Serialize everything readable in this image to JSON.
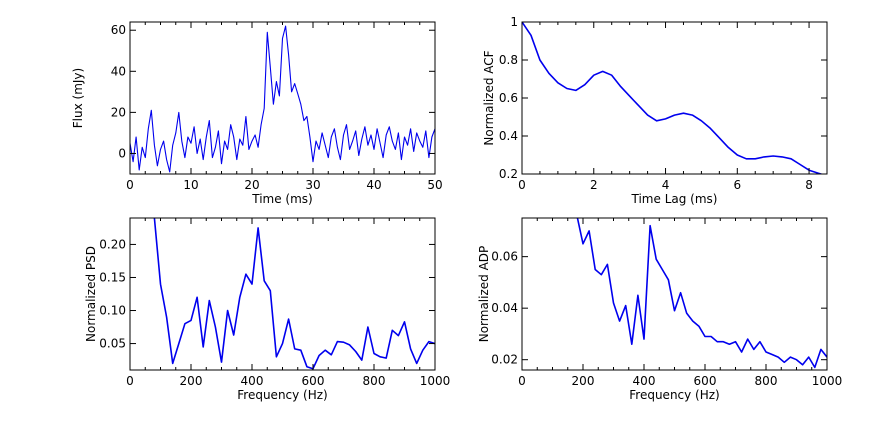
{
  "chart_data": [
    {
      "type": "line",
      "title": "",
      "xlabel": "Time (ms)",
      "ylabel": "Flux (mJy)",
      "xlim": [
        0,
        50
      ],
      "ylim": [
        -10,
        64
      ],
      "xticks": [
        0,
        10,
        20,
        30,
        40,
        50
      ],
      "yticks": [
        0,
        20,
        40,
        60
      ],
      "color": "#0000ee",
      "series": [
        {
          "name": "flux",
          "x": [
            0,
            0.5,
            1,
            1.5,
            2,
            2.5,
            3,
            3.5,
            4,
            4.5,
            5,
            5.5,
            6,
            6.5,
            7,
            7.5,
            8,
            8.5,
            9,
            9.5,
            10,
            10.5,
            11,
            11.5,
            12,
            12.5,
            13,
            13.5,
            14,
            14.5,
            15,
            15.5,
            16,
            16.5,
            17,
            17.5,
            18,
            18.5,
            19,
            19.5,
            20,
            20.5,
            21,
            21.5,
            22,
            22.5,
            23,
            23.5,
            24,
            24.5,
            25,
            25.5,
            26,
            26.5,
            27,
            27.5,
            28,
            28.5,
            29,
            29.5,
            30,
            30.5,
            31,
            31.5,
            32,
            32.5,
            33,
            33.5,
            34,
            34.5,
            35,
            35.5,
            36,
            36.5,
            37,
            37.5,
            38,
            38.5,
            39,
            39.5,
            40,
            40.5,
            41,
            41.5,
            42,
            42.5,
            43,
            43.5,
            44,
            44.5,
            45,
            45.5,
            46,
            46.5,
            47,
            47.5,
            48,
            48.5,
            49,
            49.5,
            50
          ],
          "values": [
            5,
            -4,
            8,
            -8,
            3,
            -2,
            12,
            21,
            4,
            -6,
            2,
            6,
            -3,
            -9,
            4,
            10,
            20,
            6,
            -2,
            8,
            5,
            13,
            0,
            7,
            -3,
            8,
            16,
            -2,
            3,
            11,
            -5,
            6,
            2,
            14,
            8,
            -3,
            7,
            4,
            18,
            2,
            6,
            9,
            3,
            14,
            22,
            59,
            42,
            24,
            35,
            28,
            56,
            62,
            48,
            30,
            34,
            29,
            24,
            16,
            18,
            8,
            -4,
            6,
            2,
            10,
            4,
            -2,
            8,
            12,
            3,
            -3,
            9,
            14,
            2,
            6,
            11,
            -1,
            7,
            13,
            4,
            9,
            2,
            12,
            5,
            -2,
            9,
            13,
            6,
            2,
            10,
            -3,
            8,
            4,
            12,
            1,
            10,
            6,
            3,
            11,
            -2,
            8,
            12
          ]
        }
      ]
    },
    {
      "type": "line",
      "title": "",
      "xlabel": "Time Lag (ms)",
      "ylabel": "Normalized ACF",
      "xlim": [
        0,
        8.5
      ],
      "ylim": [
        0.2,
        1.0
      ],
      "xticks": [
        0,
        2,
        4,
        6,
        8
      ],
      "yticks": [
        0.2,
        0.4,
        0.6,
        0.8,
        1.0
      ],
      "color": "#0000ee",
      "series": [
        {
          "name": "acf",
          "x": [
            0,
            0.25,
            0.5,
            0.75,
            1.0,
            1.25,
            1.5,
            1.75,
            2.0,
            2.25,
            2.5,
            2.75,
            3.0,
            3.25,
            3.5,
            3.75,
            4.0,
            4.25,
            4.5,
            4.75,
            5.0,
            5.25,
            5.5,
            5.75,
            6.0,
            6.25,
            6.5,
            6.75,
            7.0,
            7.25,
            7.5,
            7.75,
            8.0,
            8.25,
            8.5
          ],
          "values": [
            1.0,
            0.93,
            0.8,
            0.73,
            0.68,
            0.65,
            0.64,
            0.67,
            0.72,
            0.74,
            0.72,
            0.66,
            0.61,
            0.56,
            0.51,
            0.48,
            0.49,
            0.51,
            0.52,
            0.51,
            0.48,
            0.44,
            0.39,
            0.34,
            0.3,
            0.28,
            0.28,
            0.29,
            0.295,
            0.29,
            0.28,
            0.25,
            0.22,
            0.205,
            0.19
          ]
        }
      ]
    },
    {
      "type": "line",
      "title": "",
      "xlabel": "Frequency (Hz)",
      "ylabel": "Normalized PSD",
      "xlim": [
        0,
        1000
      ],
      "ylim": [
        0.01,
        0.24
      ],
      "xticks": [
        0,
        200,
        400,
        600,
        800,
        1000
      ],
      "yticks": [
        0.05,
        0.1,
        0.15,
        0.2
      ],
      "yticklabels": [
        "0.05",
        "0.10",
        "0.15",
        "0.20"
      ],
      "color": "#0000ee",
      "series": [
        {
          "name": "psd",
          "x": [
            80,
            100,
            120,
            140,
            160,
            180,
            200,
            220,
            240,
            260,
            280,
            300,
            320,
            340,
            360,
            380,
            400,
            420,
            440,
            460,
            480,
            500,
            520,
            540,
            560,
            580,
            600,
            620,
            640,
            660,
            680,
            700,
            720,
            740,
            760,
            780,
            800,
            820,
            840,
            860,
            880,
            900,
            920,
            940,
            960,
            980,
            1000
          ],
          "values": [
            0.24,
            0.14,
            0.09,
            0.02,
            0.05,
            0.08,
            0.085,
            0.12,
            0.045,
            0.115,
            0.075,
            0.022,
            0.1,
            0.063,
            0.12,
            0.155,
            0.14,
            0.225,
            0.145,
            0.13,
            0.03,
            0.05,
            0.087,
            0.042,
            0.04,
            0.015,
            0.012,
            0.032,
            0.04,
            0.033,
            0.053,
            0.052,
            0.048,
            0.038,
            0.025,
            0.075,
            0.035,
            0.03,
            0.028,
            0.07,
            0.062,
            0.083,
            0.042,
            0.02,
            0.04,
            0.053,
            0.05
          ]
        }
      ]
    },
    {
      "type": "line",
      "title": "",
      "xlabel": "Frequency (Hz)",
      "ylabel": "Normalized ADP",
      "xlim": [
        0,
        1000
      ],
      "ylim": [
        0.016,
        0.075
      ],
      "xticks": [
        0,
        200,
        400,
        600,
        800,
        1000
      ],
      "yticks": [
        0.02,
        0.04,
        0.06
      ],
      "yticklabels": [
        "0.02",
        "0.04",
        "0.06"
      ],
      "color": "#0000ee",
      "series": [
        {
          "name": "adp",
          "x": [
            180,
            200,
            220,
            240,
            260,
            280,
            300,
            320,
            340,
            360,
            380,
            400,
            420,
            440,
            460,
            480,
            500,
            520,
            540,
            560,
            580,
            600,
            620,
            640,
            660,
            680,
            700,
            720,
            740,
            760,
            780,
            800,
            820,
            840,
            860,
            880,
            900,
            920,
            940,
            960,
            980,
            1000
          ],
          "values": [
            0.076,
            0.065,
            0.07,
            0.055,
            0.053,
            0.057,
            0.042,
            0.035,
            0.041,
            0.026,
            0.045,
            0.028,
            0.072,
            0.059,
            0.055,
            0.051,
            0.039,
            0.046,
            0.038,
            0.035,
            0.033,
            0.029,
            0.029,
            0.027,
            0.027,
            0.026,
            0.027,
            0.023,
            0.028,
            0.024,
            0.027,
            0.023,
            0.022,
            0.021,
            0.019,
            0.021,
            0.02,
            0.018,
            0.021,
            0.017,
            0.024,
            0.021
          ]
        }
      ]
    }
  ]
}
